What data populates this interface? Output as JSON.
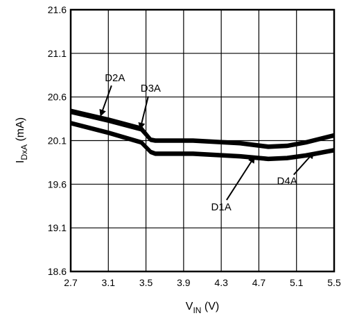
{
  "chart_data": {
    "type": "line",
    "xlabel": {
      "main": "V",
      "sub": "IN",
      "unit": " (V)"
    },
    "ylabel": {
      "main": "I",
      "sub": "DxA",
      "unit": " (mA)"
    },
    "xlim": [
      2.7,
      5.5
    ],
    "ylim": [
      18.6,
      21.6
    ],
    "xticks": [
      "2.7",
      "3.1",
      "3.5",
      "3.9",
      "4.3",
      "4.7",
      "5.1",
      "5.5"
    ],
    "yticks": [
      "18.6",
      "19.1",
      "19.6",
      "20.1",
      "20.6",
      "21.1",
      "21.6"
    ],
    "grid": true,
    "series": [
      {
        "name": "D2A",
        "x": [
          2.7,
          3.1,
          3.45,
          3.55,
          3.6,
          4.0,
          4.5,
          4.8,
          5.0,
          5.2,
          5.5
        ],
        "y": [
          20.45,
          20.35,
          20.25,
          20.12,
          20.11,
          20.11,
          20.08,
          20.04,
          20.05,
          20.09,
          20.17
        ]
      },
      {
        "name": "D3A",
        "x": [
          2.7,
          3.1,
          3.45,
          3.55,
          3.6,
          4.0,
          4.5,
          4.8,
          5.0,
          5.2,
          5.5
        ],
        "y": [
          20.42,
          20.32,
          20.22,
          20.1,
          20.09,
          20.09,
          20.06,
          20.02,
          20.03,
          20.07,
          20.15
        ]
      },
      {
        "name": "D1A",
        "x": [
          2.7,
          3.1,
          3.45,
          3.55,
          3.6,
          4.0,
          4.5,
          4.8,
          5.0,
          5.2,
          5.5
        ],
        "y": [
          20.31,
          20.2,
          20.09,
          19.98,
          19.96,
          19.96,
          19.93,
          19.9,
          19.91,
          19.94,
          20.0
        ]
      },
      {
        "name": "D4A",
        "x": [
          2.7,
          3.1,
          3.45,
          3.55,
          3.6,
          4.0,
          4.5,
          4.8,
          5.0,
          5.2,
          5.5
        ],
        "y": [
          20.29,
          20.18,
          20.07,
          19.96,
          19.94,
          19.94,
          19.91,
          19.88,
          19.89,
          19.92,
          19.98
        ]
      }
    ],
    "annotations": [
      {
        "text": "D2A",
        "x": 3.17,
        "y": 20.78,
        "arrow_x": 3.02,
        "arrow_y": 20.39
      },
      {
        "text": "D3A",
        "x": 3.55,
        "y": 20.66,
        "arrow_x": 3.44,
        "arrow_y": 20.24
      },
      {
        "text": "D1A",
        "x": 4.3,
        "y": 19.3,
        "arrow_x": 4.65,
        "arrow_y": 19.91
      },
      {
        "text": "D4A",
        "x": 5.0,
        "y": 19.6,
        "arrow_x": 5.28,
        "arrow_y": 19.96
      }
    ]
  }
}
